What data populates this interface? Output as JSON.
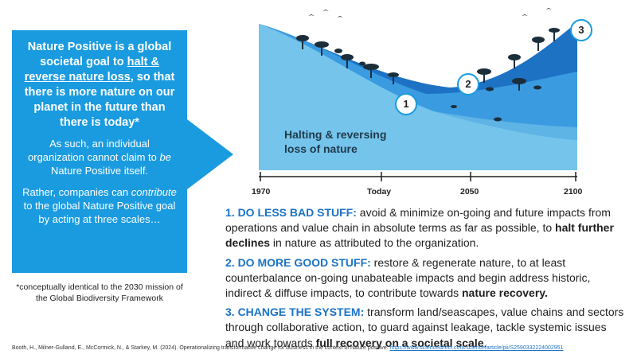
{
  "left_box": {
    "lead_1": "Nature Positive is a global societal goal to ",
    "lead_underline": "halt & reverse nature loss",
    "lead_2": ", so that there is more nature on our planet in the future than there is today*",
    "para1_a": "As such, an individual organization cannot claim to ",
    "para1_em": "be",
    "para1_b": " Nature Positive itself.",
    "para2_a": "Rather, companies can ",
    "para2_em": "contribute",
    "para2_b": " to the global Nature Positive goal by acting at three scales…"
  },
  "footnote": "*conceptually identical to the 2030 mission of the Global Biodiversity Framework",
  "chart": {
    "curve_label": "Halting & reversing loss of nature",
    "ticks": [
      "1970",
      "Today",
      "2050",
      "2100"
    ],
    "badges": [
      "1",
      "2",
      "3"
    ],
    "colors": {
      "light": "#75c4ec",
      "mid": "#3b9be0",
      "dark": "#1d72c4"
    }
  },
  "points": [
    {
      "head": "1. DO LESS BAD STUFF:",
      "text": " avoid & minimize on-going and future impacts from operations and value chain in absolute terms as far as possible, to ",
      "bold": "halt further declines",
      "tail": " in nature as attributed to the organization."
    },
    {
      "head": "2. DO MORE GOOD STUFF:",
      "text": " restore & regenerate nature, to at least counterbalance on-going unabateable impacts and begin address historic, indirect & diffuse impacts, to contribute towards ",
      "bold": "nature recovery.",
      "tail": ""
    },
    {
      "head": "3. CHANGE THE SYSTEM:",
      "text": " transform land/seascapes, value chains and sectors through collaborative action, to guard against leakage, tackle systemic issues and work towards ",
      "bold": "full recovery on a societal scale",
      "tail": "."
    }
  ],
  "citation": {
    "text": "Booth, H., Milner-Gulland, E., McCormick, N., & Starkey, M. (2024). Operationalizing transformative change for business in the context of nature positive. ",
    "link": "https://www.sciencedirect.com/science/article/pii/S2590332224002951"
  }
}
